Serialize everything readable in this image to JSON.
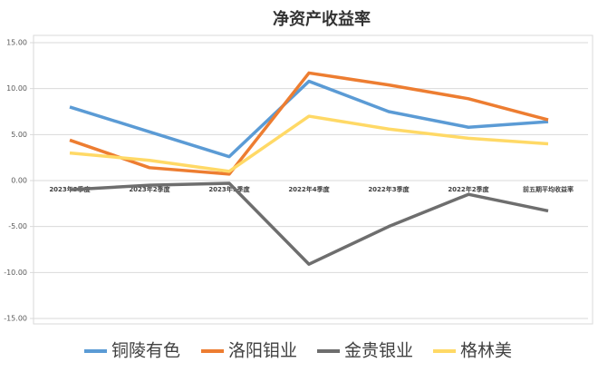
{
  "chart_data": {
    "type": "line",
    "title": "净资产收益率",
    "categories": [
      "2023年3季度",
      "2023年2季度",
      "2023年1季度",
      "2022年4季度",
      "2022年3季度",
      "2022年2季度",
      "前五期平均收益率"
    ],
    "series": [
      {
        "name": "铜陵有色",
        "color": "#5b9bd5",
        "values": [
          8.0,
          5.3,
          2.6,
          10.8,
          7.5,
          5.8,
          6.4
        ]
      },
      {
        "name": "洛阳钼业",
        "color": "#ed7d31",
        "values": [
          4.4,
          1.4,
          0.7,
          11.7,
          10.4,
          8.9,
          6.6
        ]
      },
      {
        "name": "金贵银业",
        "color": "#6e6e6e",
        "values": [
          -1.0,
          -0.5,
          -0.3,
          -9.1,
          -5.0,
          -1.5,
          -3.3
        ]
      },
      {
        "name": "格林美",
        "color": "#ffd966",
        "values": [
          3.0,
          2.2,
          1.0,
          7.0,
          5.6,
          4.6,
          4.0
        ]
      }
    ],
    "ylim": [
      -15,
      15
    ],
    "yticks": [
      {
        "value": 15,
        "label": "15.00"
      },
      {
        "value": 10,
        "label": "10.00"
      },
      {
        "value": 5,
        "label": "5.00"
      },
      {
        "value": 0,
        "label": "0.00"
      },
      {
        "value": -5,
        "label": "-5.00"
      },
      {
        "value": -10,
        "label": "-10.00"
      },
      {
        "value": -15,
        "label": "-15.00"
      }
    ],
    "grid": true
  }
}
